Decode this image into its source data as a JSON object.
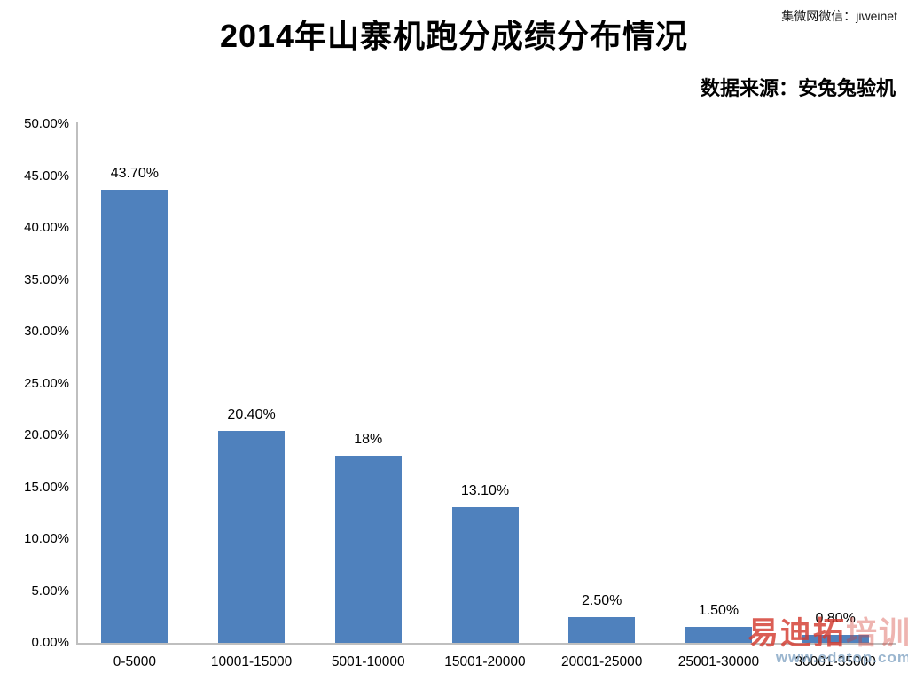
{
  "header": {
    "title": "2014年山寨机跑分成绩分布情况",
    "wechat_note": "集微网微信：jiweinet",
    "source": "数据来源：安兔兔验机"
  },
  "chart_data": {
    "type": "bar",
    "title": "2014年山寨机跑分成绩分布情况",
    "categories": [
      "0-5000",
      "10001-15000",
      "5001-10000",
      "15001-20000",
      "20001-25000",
      "25001-30000",
      "30001-35000"
    ],
    "values": [
      43.7,
      20.4,
      18,
      13.1,
      2.5,
      1.5,
      0.8
    ],
    "value_labels": [
      "43.70%",
      "20.40%",
      "18%",
      "13.10%",
      "2.50%",
      "1.50%",
      "0.80%"
    ],
    "xlabel": "",
    "ylabel": "",
    "ylim": [
      0,
      50
    ],
    "ytick_step": 5,
    "ytick_labels": [
      "0.00%",
      "5.00%",
      "10.00%",
      "15.00%",
      "20.00%",
      "25.00%",
      "30.00%",
      "35.00%",
      "40.00%",
      "45.00%",
      "50.00%"
    ],
    "grid": false,
    "legend": false,
    "bar_color": "#4F81BD"
  },
  "watermark": {
    "brand_red": "易迪拓",
    "brand_light": "培训",
    "url": "www.edatop.com"
  },
  "colors": {
    "bar": "#4F81BD",
    "axis_line": "#BFBFBF",
    "text": "#000000",
    "watermark_red": "#D33A30",
    "watermark_url": "#89A9C7"
  }
}
